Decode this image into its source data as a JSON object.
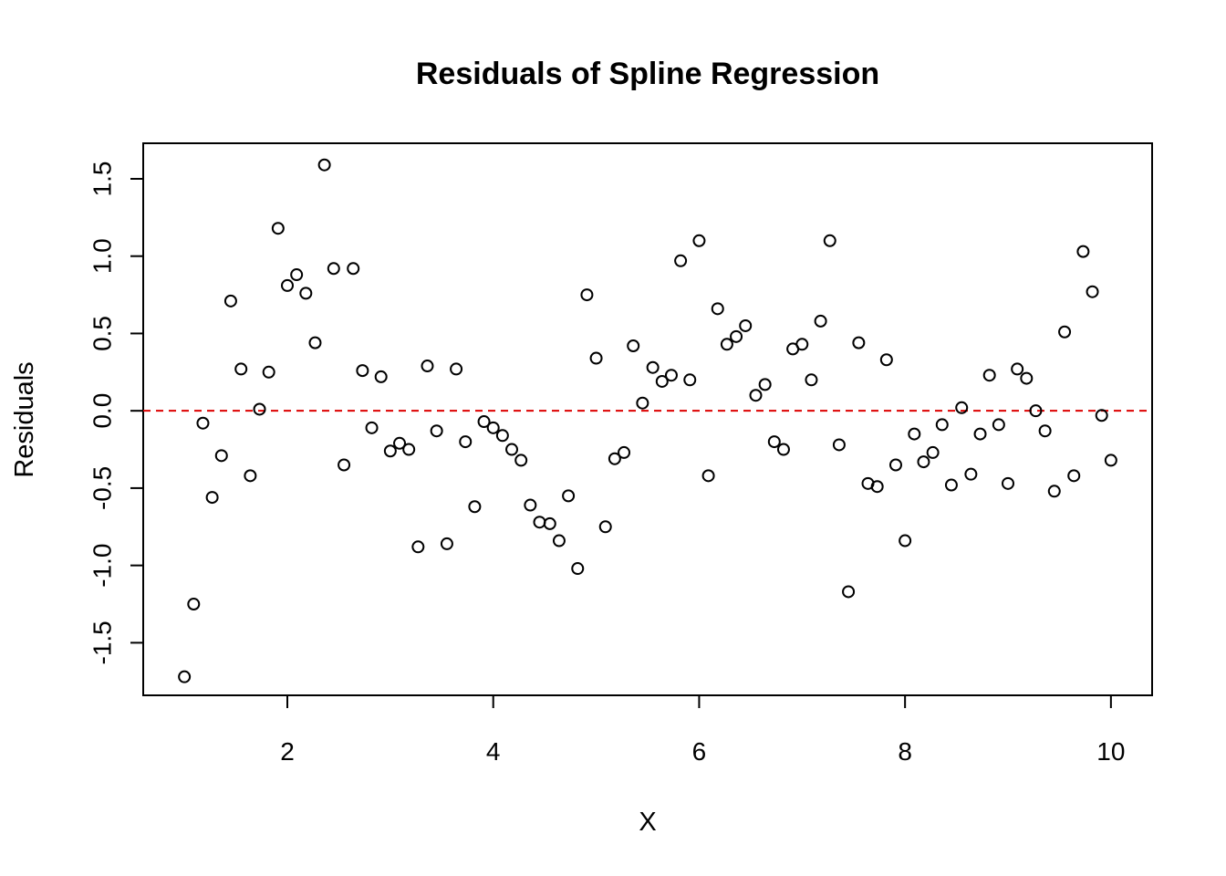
{
  "chart_data": {
    "type": "scatter",
    "title": "Residuals of Spline Regression",
    "xlabel": "X",
    "ylabel": "Residuals",
    "xlim": [
      0.6,
      10.4
    ],
    "ylim": [
      -1.84,
      1.73
    ],
    "x_ticks": [
      2,
      4,
      6,
      8,
      10
    ],
    "x_tick_labels": [
      "2",
      "4",
      "6",
      "8",
      "10"
    ],
    "y_ticks": [
      -1.5,
      -1.0,
      -0.5,
      0.0,
      0.5,
      1.0,
      1.5
    ],
    "y_tick_labels": [
      "-1.5",
      "-1.0",
      "-0.5",
      "0.0",
      "0.5",
      "1.0",
      "1.5"
    ],
    "grid": false,
    "reference_line": {
      "y": 0,
      "style": "dashed",
      "color": "#dd0000"
    },
    "point_color": "#000000",
    "series": [
      {
        "x": [
          1.0,
          1.09,
          1.18,
          1.27,
          1.36,
          1.45,
          1.55,
          1.64,
          1.73,
          1.82,
          1.91,
          2.0,
          2.09,
          2.18,
          2.27,
          2.36,
          2.45,
          2.55,
          2.64,
          2.73,
          2.82,
          2.91,
          3.0,
          3.09,
          3.18,
          3.27,
          3.36,
          3.45,
          3.55,
          3.64,
          3.73,
          3.82,
          3.91,
          4.0,
          4.09,
          4.18,
          4.27,
          4.36,
          4.45,
          4.55,
          4.64,
          4.73,
          4.82,
          4.91,
          5.0,
          5.09,
          5.18,
          5.27,
          5.36,
          5.45,
          5.55,
          5.64,
          5.73,
          5.82,
          5.91,
          6.0,
          6.09,
          6.18,
          6.27,
          6.36,
          6.45,
          6.55,
          6.64,
          6.73,
          6.82,
          6.91,
          7.0,
          7.09,
          7.18,
          7.27,
          7.36,
          7.45,
          7.55,
          7.64,
          7.73,
          7.82,
          7.91,
          8.0,
          8.09,
          8.18,
          8.27,
          8.36,
          8.45,
          8.55,
          8.64,
          8.73,
          8.82,
          8.91,
          9.0,
          9.09,
          9.18,
          9.27,
          9.36,
          9.45,
          9.55,
          9.64,
          9.73,
          9.82,
          9.91,
          10.0
        ],
        "y": [
          -1.72,
          -1.25,
          -0.08,
          -0.56,
          -0.29,
          0.71,
          0.27,
          -0.42,
          0.01,
          0.25,
          1.18,
          0.81,
          0.88,
          0.76,
          0.44,
          1.59,
          0.92,
          -0.35,
          0.92,
          0.26,
          -0.11,
          0.22,
          -0.26,
          -0.21,
          -0.25,
          -0.88,
          0.29,
          -0.13,
          -0.86,
          0.27,
          -0.2,
          -0.62,
          -0.07,
          -0.11,
          -0.16,
          -0.25,
          -0.32,
          -0.61,
          -0.72,
          -0.73,
          -0.84,
          -0.55,
          -1.02,
          0.75,
          0.34,
          -0.75,
          -0.31,
          -0.27,
          0.42,
          0.05,
          0.28,
          0.19,
          0.23,
          0.97,
          0.2,
          1.1,
          -0.42,
          0.66,
          0.43,
          0.48,
          0.55,
          0.1,
          0.17,
          -0.2,
          -0.25,
          0.4,
          0.43,
          0.2,
          0.58,
          1.1,
          -0.22,
          -1.17,
          0.44,
          -0.47,
          -0.49,
          0.33,
          -0.35,
          -0.84,
          -0.15,
          -0.33,
          -0.27,
          -0.09,
          -0.48,
          0.02,
          -0.41,
          -0.15,
          0.23,
          -0.09,
          -0.47,
          0.27,
          0.21,
          0.0,
          -0.13,
          -0.52,
          0.51,
          -0.42,
          1.03,
          0.77,
          -0.03,
          -0.32
        ]
      }
    ]
  }
}
